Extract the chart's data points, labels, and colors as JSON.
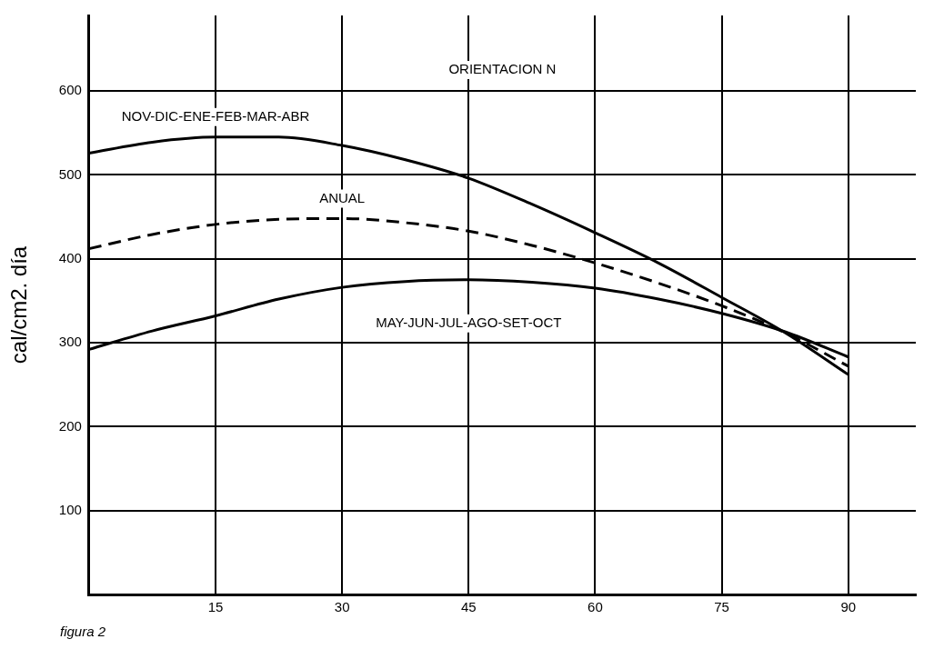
{
  "chart_data": {
    "type": "line",
    "title": "ORIENTACION N",
    "ylabel": "cal/cm2. día",
    "annotations": [
      "figura 2"
    ],
    "x": [
      0,
      7.5,
      15,
      22.5,
      30,
      37.5,
      45,
      52.5,
      60,
      67.5,
      75,
      82.5,
      90
    ],
    "series": [
      {
        "name": "NOV-DIC-ENE-FEB-MAR-ABR",
        "color": "#000000",
        "line_style": "solid",
        "values": [
          526,
          539,
          545,
          545,
          535,
          518,
          496,
          465,
          431,
          395,
          354,
          312,
          262
        ]
      },
      {
        "name": "ANUAL",
        "color": "#000000",
        "line_style": "dashed",
        "values": [
          412,
          429,
          441,
          447,
          448,
          443,
          433,
          416,
          395,
          371,
          344,
          312,
          272
        ]
      },
      {
        "name": "MAY-JUN-JUL-AGO-SET-OCT",
        "color": "#000000",
        "line_style": "solid",
        "values": [
          292,
          314,
          332,
          352,
          366,
          373,
          375,
          372,
          365,
          352,
          335,
          313,
          283
        ]
      }
    ],
    "xlim": [
      0,
      98
    ],
    "xticks": [
      15,
      30,
      45,
      60,
      75,
      90
    ],
    "ylim": [
      0,
      690
    ],
    "yticks": [
      100,
      200,
      300,
      400,
      500,
      600
    ],
    "grid": true,
    "legend": false,
    "marker": "none"
  }
}
